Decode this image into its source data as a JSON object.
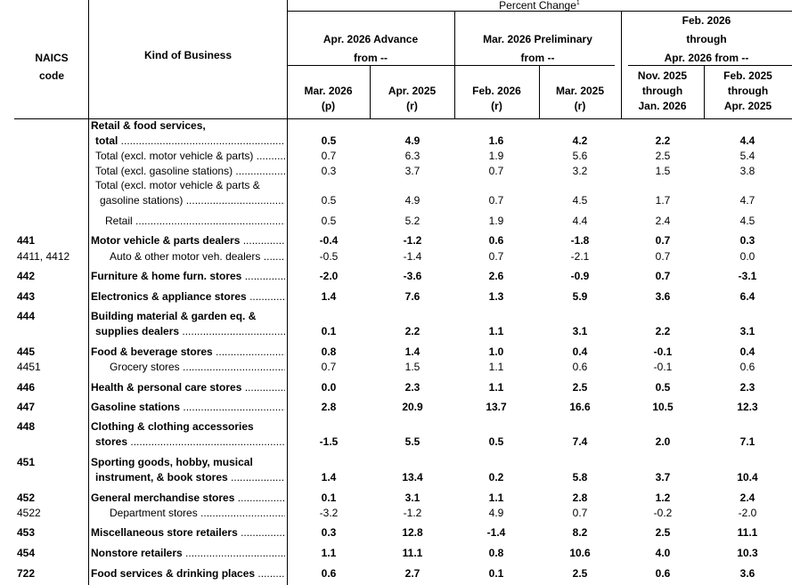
{
  "header": {
    "percent_change": "Percent Change",
    "naics_line1": "NAICS",
    "naics_line2": "code",
    "kind": "Kind of Business",
    "group_adv_line1": "Apr. 2026 Advance",
    "group_adv_line2": "from --",
    "group_pre_line1": "Mar. 2026 Preliminary",
    "group_pre_line2": "from --",
    "group_3mo_line1": "Feb. 2026",
    "group_3mo_line2": "through",
    "group_3mo_line3": "Apr. 2026 from --",
    "cols": [
      {
        "l1": "Mar. 2026",
        "l2": "(p)"
      },
      {
        "l1": "Apr. 2025",
        "l2": "(r)"
      },
      {
        "l1": "Feb. 2026",
        "l2": "(r)"
      },
      {
        "l1": "Mar. 2025",
        "l2": "(r)"
      },
      {
        "l1": "Nov. 2025",
        "l2": "through",
        "l3": "Jan. 2026"
      },
      {
        "l1": "Feb. 2025",
        "l2": "through",
        "l3": "Apr. 2025"
      }
    ]
  },
  "rows": [
    {
      "code": "",
      "label": "Retail & food services,",
      "label2": "total",
      "bold": true,
      "indent": 0,
      "values": [
        "0.5",
        "4.9",
        "1.6",
        "4.2",
        "2.2",
        "4.4"
      ]
    },
    {
      "code": "",
      "label": "Total (excl. motor vehicle & parts)",
      "bold": false,
      "indent": 1,
      "values": [
        "0.7",
        "6.3",
        "1.9",
        "5.6",
        "2.5",
        "5.4"
      ]
    },
    {
      "code": "",
      "label": "Total (excl. gasoline stations)",
      "bold": false,
      "indent": 1,
      "values": [
        "0.3",
        "3.7",
        "0.7",
        "3.2",
        "1.5",
        "3.8"
      ]
    },
    {
      "code": "",
      "label": "Total (excl. motor vehicle & parts &",
      "label2": "gasoline stations)",
      "bold": false,
      "indent": 1,
      "values": [
        "0.5",
        "4.9",
        "0.7",
        "4.5",
        "1.7",
        "4.7"
      ]
    },
    {
      "code": "",
      "label": "Retail",
      "bold": false,
      "indent": 2,
      "values": [
        "0.5",
        "5.2",
        "1.9",
        "4.4",
        "2.4",
        "4.5"
      ]
    },
    {
      "code": "441",
      "label": "Motor vehicle & parts dealers",
      "bold": true,
      "indent": 0,
      "values": [
        "-0.4",
        "-1.2",
        "0.6",
        "-1.8",
        "0.7",
        "0.3"
      ]
    },
    {
      "code": "4411, 4412",
      "label": "Auto & other motor veh. dealers",
      "bold": false,
      "indent": 3,
      "values": [
        "-0.5",
        "-1.4",
        "0.7",
        "-2.1",
        "0.7",
        "0.0"
      ]
    },
    {
      "code": "442",
      "label": "Furniture & home furn. stores",
      "bold": true,
      "indent": 0,
      "values": [
        "-2.0",
        "-3.6",
        "2.6",
        "-0.9",
        "0.7",
        "-3.1"
      ]
    },
    {
      "code": "443",
      "label": "Electronics & appliance stores",
      "bold": true,
      "indent": 0,
      "values": [
        "1.4",
        "7.6",
        "1.3",
        "5.9",
        "3.6",
        "6.4"
      ]
    },
    {
      "code": "444",
      "label": "Building material & garden eq. &",
      "label2": "supplies dealers",
      "bold": true,
      "indent": 0,
      "values": [
        "0.1",
        "2.2",
        "1.1",
        "3.1",
        "2.2",
        "3.1"
      ]
    },
    {
      "code": "445",
      "label": "Food & beverage stores",
      "bold": true,
      "indent": 0,
      "values": [
        "0.8",
        "1.4",
        "1.0",
        "0.4",
        "-0.1",
        "0.4"
      ]
    },
    {
      "code": "4451",
      "label": "Grocery stores",
      "bold": false,
      "indent": 3,
      "values": [
        "0.7",
        "1.5",
        "1.1",
        "0.6",
        "-0.1",
        "0.6"
      ]
    },
    {
      "code": "446",
      "label": "Health & personal care stores",
      "bold": true,
      "indent": 0,
      "values": [
        "0.0",
        "2.3",
        "1.1",
        "2.5",
        "0.5",
        "2.3"
      ]
    },
    {
      "code": "447",
      "label": "Gasoline stations",
      "bold": true,
      "indent": 0,
      "values": [
        "2.8",
        "20.9",
        "13.7",
        "16.6",
        "10.5",
        "12.3"
      ]
    },
    {
      "code": "448",
      "label": "Clothing & clothing accessories",
      "label2": "stores",
      "bold": true,
      "indent": 0,
      "values": [
        "-1.5",
        "5.5",
        "0.5",
        "7.4",
        "2.0",
        "7.1"
      ]
    },
    {
      "code": "451",
      "label": "Sporting goods, hobby, musical",
      "label2": "instrument, & book stores",
      "bold": true,
      "indent": 0,
      "values": [
        "1.4",
        "13.4",
        "0.2",
        "5.8",
        "3.7",
        "10.4"
      ]
    },
    {
      "code": "452",
      "label": "General merchandise stores",
      "bold": true,
      "indent": 0,
      "values": [
        "0.1",
        "3.1",
        "1.1",
        "2.8",
        "1.2",
        "2.4"
      ]
    },
    {
      "code": "4522",
      "label": "Department stores",
      "bold": false,
      "indent": 3,
      "values": [
        "-3.2",
        "-1.2",
        "4.9",
        "0.7",
        "-0.2",
        "-2.0"
      ]
    },
    {
      "code": "453",
      "label": "Miscellaneous store retailers",
      "bold": true,
      "indent": 0,
      "values": [
        "0.3",
        "12.8",
        "-1.4",
        "8.2",
        "2.5",
        "11.1"
      ]
    },
    {
      "code": "454",
      "label": "Nonstore retailers",
      "bold": true,
      "indent": 0,
      "values": [
        "1.1",
        "11.1",
        "0.8",
        "10.6",
        "4.0",
        "10.3"
      ]
    },
    {
      "code": "722",
      "label": "Food services & drinking places",
      "bold": true,
      "indent": 0,
      "values": [
        "0.6",
        "2.7",
        "0.1",
        "2.5",
        "0.6",
        "3.6"
      ]
    }
  ]
}
